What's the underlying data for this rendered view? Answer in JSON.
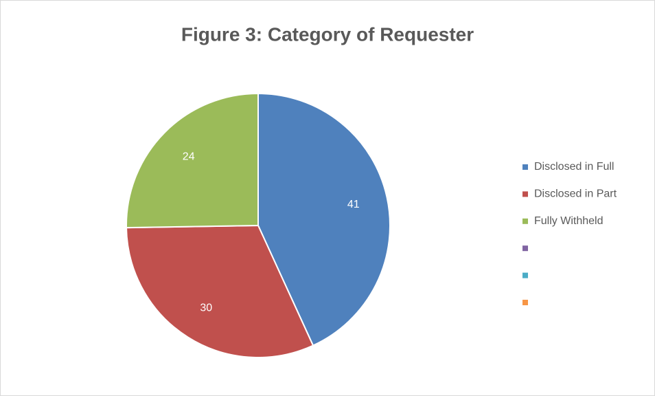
{
  "chart_data": {
    "type": "pie",
    "title": "Figure 3: Category of Requester",
    "categories": [
      "Disclosed in Full",
      "Disclosed in Part",
      "Fully Withheld",
      null,
      null,
      null
    ],
    "values": [
      41,
      30,
      24,
      null,
      null,
      null
    ],
    "colors": [
      "#4f81bd",
      "#c0504d",
      "#9bbb59",
      "#8064a2",
      "#4bacc6",
      "#f79646"
    ],
    "legend": "right"
  }
}
